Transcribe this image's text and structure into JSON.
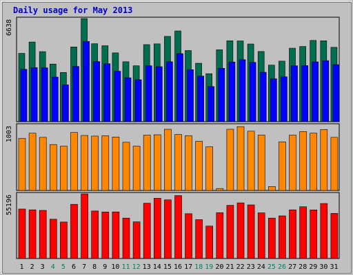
{
  "chart_data": {
    "type": "bar",
    "title": "Daily usage for May 2013",
    "categories": [
      "1",
      "2",
      "3",
      "4",
      "5",
      "6",
      "7",
      "8",
      "9",
      "10",
      "11",
      "12",
      "13",
      "14",
      "15",
      "16",
      "17",
      "18",
      "19",
      "20",
      "21",
      "22",
      "23",
      "24",
      "25",
      "26",
      "27",
      "28",
      "29",
      "30",
      "31"
    ],
    "weekend_days": [
      "4",
      "5",
      "11",
      "12",
      "18",
      "19",
      "25",
      "26"
    ],
    "panels": [
      {
        "name": "top",
        "ymax_label": "6638",
        "ymax": 6638,
        "series": [
          {
            "color": "#006e4e",
            "values": [
              4400,
              5130,
              4510,
              3710,
              3170,
              4810,
              6638,
              5020,
              4890,
              4430,
              3860,
              3600,
              4960,
              5010,
              5490,
              5840,
              4580,
              3760,
              3090,
              4630,
              5210,
              5200,
              5000,
              4520,
              3640,
              3900,
              4730,
              4840,
              5230,
              5210,
              4790
            ]
          },
          {
            "color": "#0000ff",
            "values": [
              3370,
              3480,
              3470,
              2870,
              2370,
              3560,
              5170,
              3870,
              3730,
              3250,
              2830,
              2700,
              3600,
              3540,
              3860,
              4380,
              3350,
              2940,
              2260,
              3440,
              3840,
              3990,
              3820,
              3180,
              2760,
              2890,
              3600,
              3610,
              3850,
              3930,
              3670
            ]
          }
        ]
      },
      {
        "name": "middle",
        "ymax_label": "1003",
        "ymax": 1003,
        "series": [
          {
            "color": "#ff8800",
            "values": [
              800,
              880,
              815,
              705,
              680,
              890,
              845,
              835,
              840,
              820,
              740,
              680,
              850,
              855,
              940,
              860,
              840,
              755,
              670,
              30,
              940,
              980,
              910,
              850,
              60,
              745,
              850,
              905,
              880,
              935,
              815
            ]
          }
        ]
      },
      {
        "name": "bottom",
        "ymax_label": "55196",
        "ymax": 55196,
        "series": [
          {
            "color": "#ff0000",
            "values": [
              42300,
              41600,
              41100,
              33600,
              31200,
              46300,
              55196,
              40600,
              39700,
              39800,
              34500,
              31300,
              47200,
              51500,
              50100,
              53700,
              38300,
              33200,
              27700,
              39100,
              45400,
              47500,
              45800,
              39000,
              34500,
              36400,
              41600,
              44200,
              41500,
              47000,
              38500
            ]
          }
        ]
      }
    ]
  }
}
